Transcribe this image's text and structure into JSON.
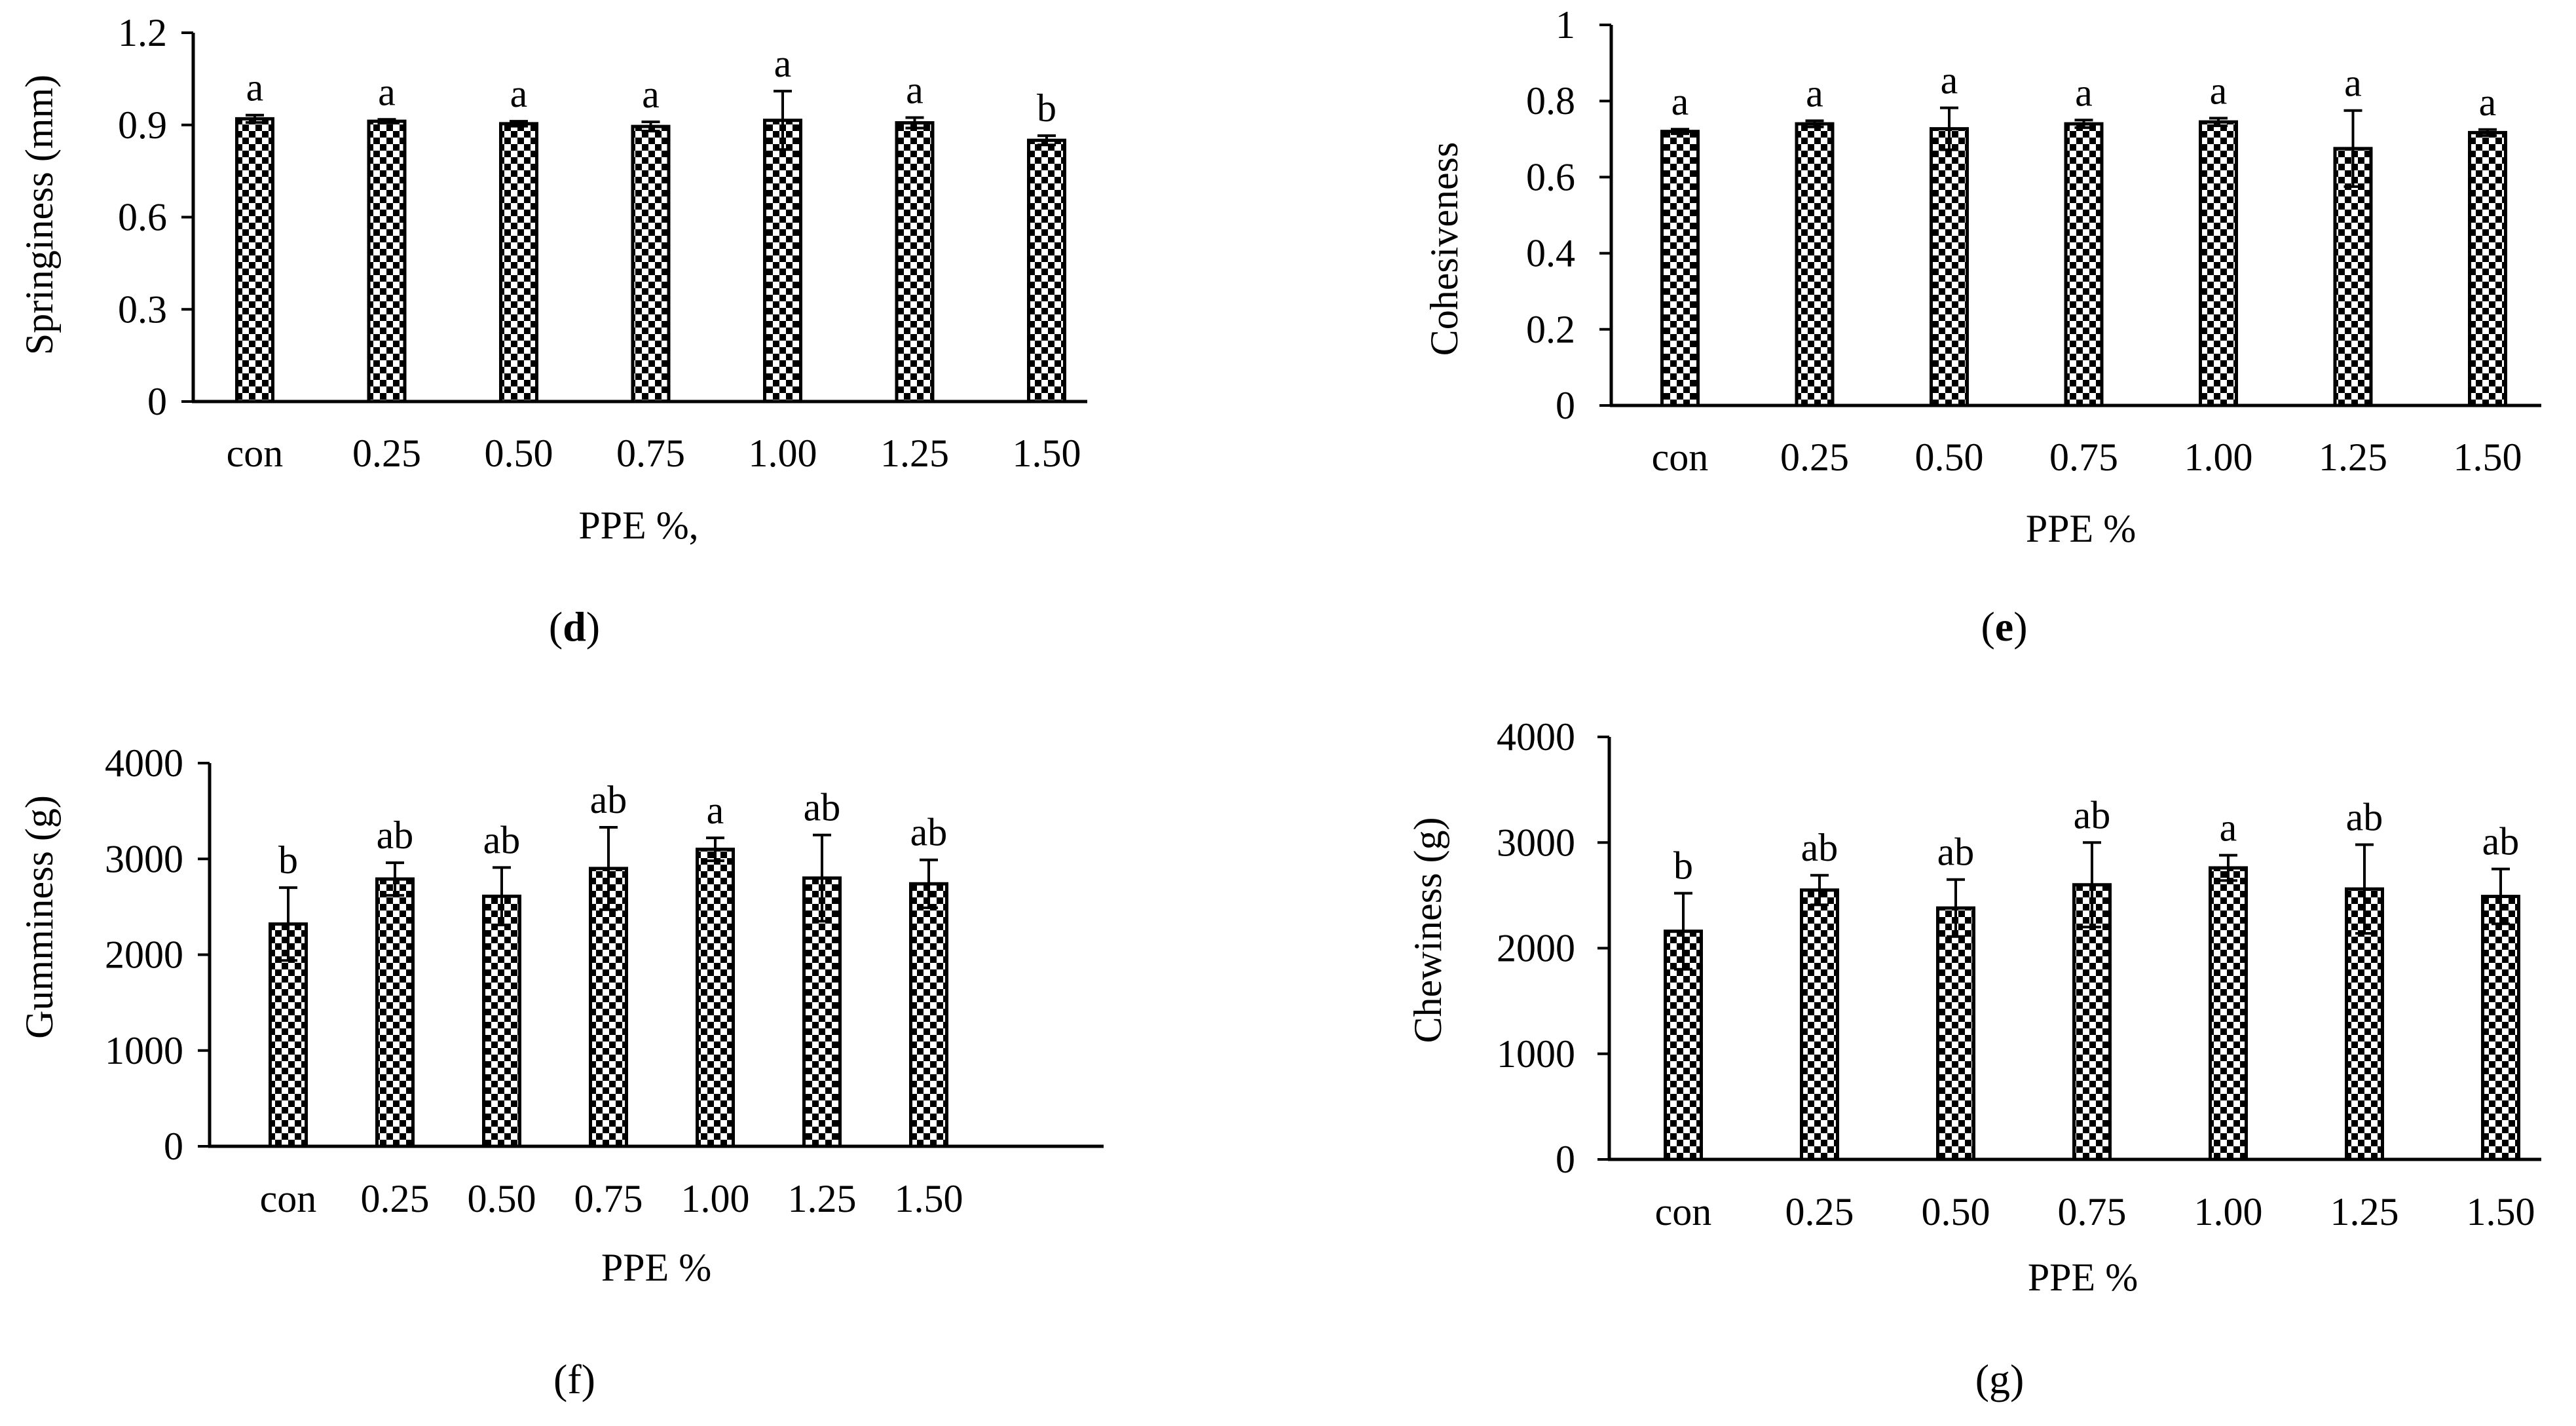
{
  "chart_data": [
    {
      "type": "bar",
      "panel_label": "d",
      "panel_bold": true,
      "categories": [
        "con",
        "0.25",
        "0.50",
        "0.75",
        "1.00",
        "1.25",
        "1.50"
      ],
      "values": [
        0.92,
        0.912,
        0.904,
        0.895,
        0.915,
        0.907,
        0.85
      ],
      "errors": [
        0.012,
        0.006,
        0.008,
        0.015,
        0.095,
        0.017,
        0.015
      ],
      "letters": [
        "a",
        "a",
        "a",
        "a",
        "a",
        "a",
        "b"
      ],
      "xlabel": "PPE %,",
      "ylabel": "Springiness (mm)",
      "ylim": [
        0,
        1.2
      ],
      "yticks": [
        "0",
        "0.3",
        "0.6",
        "0.9",
        "1.2"
      ],
      "ytick_values": [
        0,
        0.3,
        0.6,
        0.9,
        1.2
      ]
    },
    {
      "type": "bar",
      "panel_label": "e",
      "panel_bold": true,
      "categories": [
        "con",
        "0.25",
        "0.50",
        "0.75",
        "1.00",
        "1.25",
        "1.50"
      ],
      "values": [
        0.72,
        0.74,
        0.727,
        0.74,
        0.745,
        0.675,
        0.717
      ],
      "errors": [
        0.006,
        0.008,
        0.055,
        0.01,
        0.01,
        0.1,
        0.008
      ],
      "letters": [
        "a",
        "a",
        "a",
        "a",
        "a",
        "a",
        "a"
      ],
      "xlabel": "PPE %",
      "ylabel": "Cohesiveness",
      "ylim": [
        0,
        1
      ],
      "yticks": [
        "0",
        "0.2",
        "0.4",
        "0.6",
        "0.8",
        "1"
      ],
      "ytick_values": [
        0,
        0.2,
        0.4,
        0.6,
        0.8,
        1
      ]
    },
    {
      "type": "bar",
      "panel_label": "(f)",
      "panel_bold": false,
      "categories": [
        "con",
        "0.25",
        "0.50",
        "0.75",
        "1.00",
        "1.25",
        "1.50"
      ],
      "values": [
        2320,
        2790,
        2610,
        2900,
        3100,
        2800,
        2740
      ],
      "errors": [
        380,
        170,
        300,
        430,
        120,
        450,
        250
      ],
      "letters": [
        "b",
        "ab",
        "ab",
        "ab",
        "a",
        "ab",
        "ab"
      ],
      "xlabel": "PPE %",
      "ylabel": "Gumminess (g)",
      "ylim": [
        0,
        4000
      ],
      "yticks": [
        "0",
        "1000",
        "2000",
        "3000",
        "4000"
      ],
      "ytick_values": [
        0,
        1000,
        2000,
        3000,
        4000
      ]
    },
    {
      "type": "bar",
      "panel_label": "(g)",
      "panel_bold": false,
      "categories": [
        "con",
        "0.25",
        "0.50",
        "0.75",
        "1.00",
        "1.25",
        "1.50"
      ],
      "values": [
        2160,
        2550,
        2380,
        2600,
        2760,
        2560,
        2490
      ],
      "errors": [
        360,
        140,
        270,
        400,
        120,
        420,
        260
      ],
      "letters": [
        "b",
        "ab",
        "ab",
        "ab",
        "a",
        "ab",
        "ab"
      ],
      "xlabel": "PPE %",
      "ylabel": "Chewiness (g)",
      "ylim": [
        0,
        4000
      ],
      "yticks": [
        "0",
        "1000",
        "2000",
        "3000",
        "4000"
      ],
      "ytick_values": [
        0,
        1000,
        2000,
        3000,
        4000
      ]
    }
  ]
}
